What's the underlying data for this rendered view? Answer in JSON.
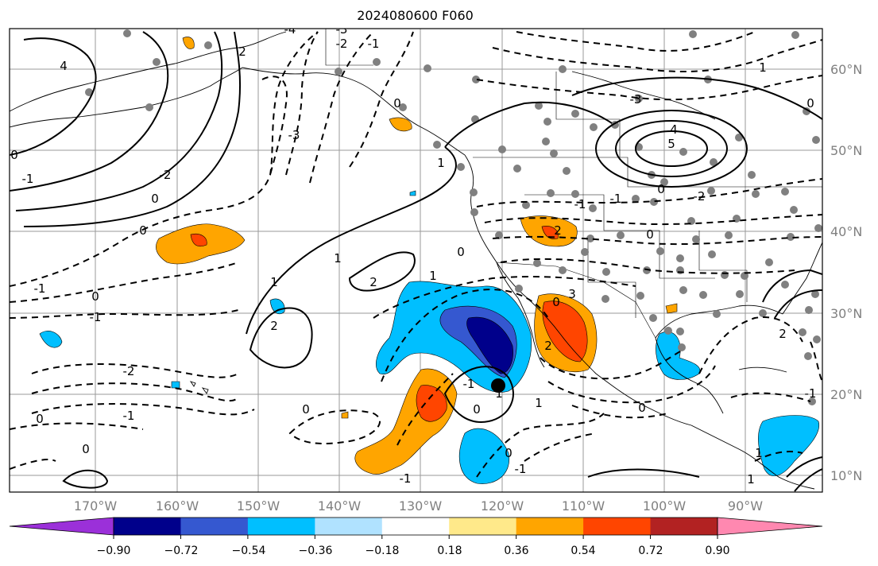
{
  "title": "2024080600 F060",
  "lat_labels": [
    "60°N",
    "50°N",
    "40°N",
    "30°N",
    "20°N",
    "10°N"
  ],
  "lon_labels": [
    "170°W",
    "160°W",
    "150°W",
    "140°W",
    "130°W",
    "120°W",
    "110°W",
    "100°W",
    "90°W"
  ],
  "contour_labels": [
    "4",
    "-1",
    "0",
    "0",
    "-1",
    "-2",
    "-1",
    "0",
    "1",
    "1",
    "0",
    "-1",
    "0",
    "0",
    "-2",
    "0",
    "-1",
    "2",
    "1",
    "2",
    "1",
    "-3",
    "-2",
    "-1",
    "0",
    "-3",
    "-4",
    "2",
    "5",
    "-3",
    "4",
    "0",
    "-2",
    "-1",
    "0",
    "-1",
    "1",
    "-1",
    "0",
    "0",
    "2",
    "0",
    "1",
    "0",
    "2",
    "-1",
    "0",
    "3",
    "1",
    "0",
    "1",
    "-1",
    "1",
    "2"
  ],
  "colorbar": {
    "ticks": [
      "−0.90",
      "−0.72",
      "−0.54",
      "−0.36",
      "−0.18",
      "0.18",
      "0.36",
      "0.54",
      "0.72",
      "0.90"
    ],
    "colors": [
      "#9b30d9",
      "#00008b",
      "#3558d0",
      "#00bfff",
      "#b0e2ff",
      "#ffffff",
      "#ffe98a",
      "#ffa500",
      "#ff4500",
      "#b22222",
      "#ff88b0"
    ]
  }
}
